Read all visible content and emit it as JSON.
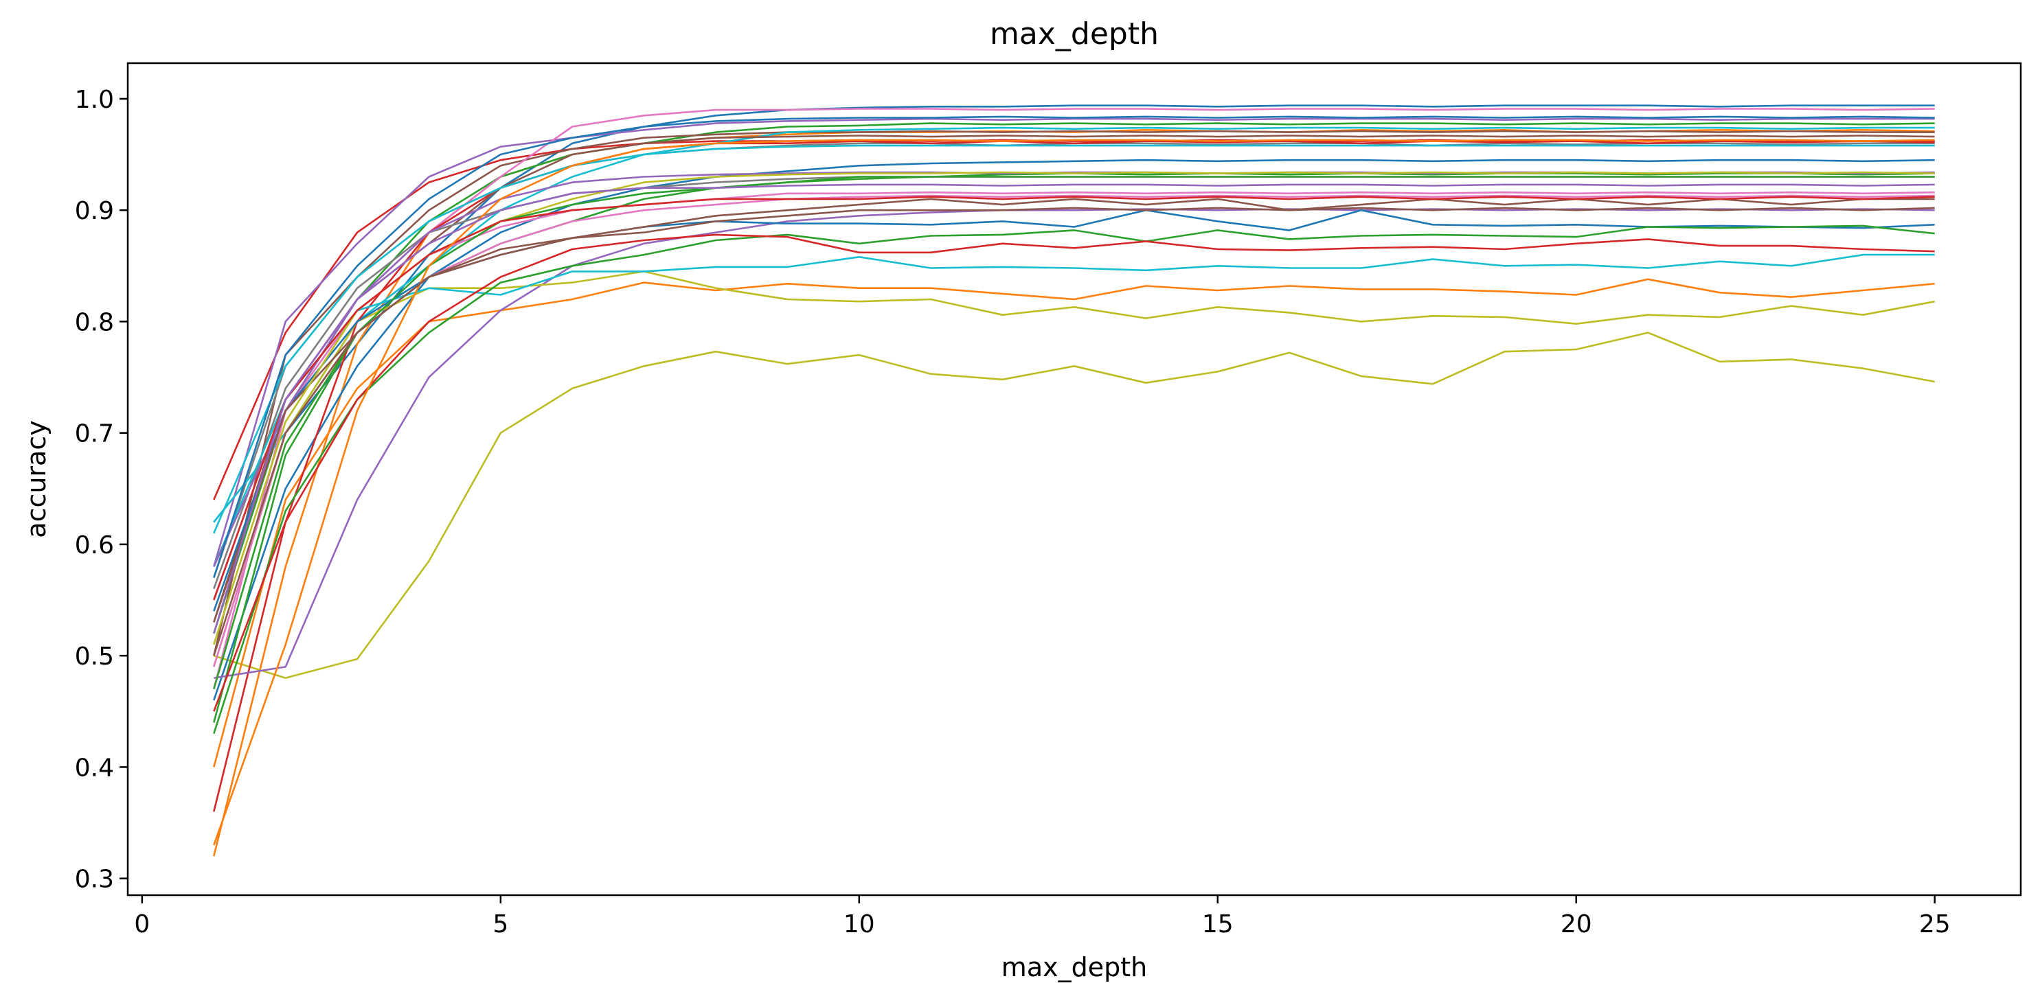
{
  "chart_data": {
    "type": "line",
    "title": "max_depth",
    "xlabel": "max_depth",
    "ylabel": "accuracy",
    "xlim": [
      -0.2,
      26.2
    ],
    "ylim": [
      0.285,
      1.032
    ],
    "xticks": [
      0,
      5,
      10,
      15,
      20,
      25
    ],
    "xtick_labels": [
      "0",
      "5",
      "10",
      "15",
      "20",
      "25"
    ],
    "yticks": [
      0.3,
      0.4,
      0.5,
      0.6,
      0.7,
      0.8,
      0.9,
      1.0
    ],
    "ytick_labels": [
      "0.3",
      "0.4",
      "0.5",
      "0.6",
      "0.7",
      "0.8",
      "0.9",
      "1.0"
    ],
    "grid": false,
    "legend": "none",
    "x": [
      1,
      2,
      3,
      4,
      5,
      6,
      7,
      8,
      9,
      10,
      11,
      12,
      13,
      14,
      15,
      16,
      17,
      18,
      19,
      20,
      21,
      22,
      23,
      24,
      25
    ],
    "series": [
      {
        "color": "#1f77b4",
        "values": [
          0.62,
          0.7,
          0.78,
          0.86,
          0.92,
          0.96,
          0.975,
          0.985,
          0.99,
          0.992,
          0.993,
          0.993,
          0.994,
          0.994,
          0.993,
          0.994,
          0.994,
          0.993,
          0.994,
          0.994,
          0.994,
          0.993,
          0.994,
          0.994,
          0.994
        ]
      },
      {
        "color": "#ff7f0e",
        "values": [
          0.32,
          0.58,
          0.78,
          0.88,
          0.93,
          0.95,
          0.96,
          0.965,
          0.968,
          0.97,
          0.97,
          0.971,
          0.97,
          0.972,
          0.971,
          0.97,
          0.972,
          0.971,
          0.972,
          0.97,
          0.971,
          0.972,
          0.971,
          0.972,
          0.971
        ]
      },
      {
        "color": "#2ca02c",
        "values": [
          0.52,
          0.72,
          0.82,
          0.89,
          0.93,
          0.95,
          0.96,
          0.97,
          0.975,
          0.976,
          0.978,
          0.977,
          0.978,
          0.977,
          0.978,
          0.977,
          0.978,
          0.978,
          0.977,
          0.978,
          0.977,
          0.978,
          0.978,
          0.977,
          0.978
        ]
      },
      {
        "color": "#d62728",
        "values": [
          0.64,
          0.79,
          0.88,
          0.925,
          0.945,
          0.955,
          0.96,
          0.962,
          0.962,
          0.963,
          0.962,
          0.963,
          0.962,
          0.962,
          0.963,
          0.962,
          0.962,
          0.963,
          0.962,
          0.962,
          0.963,
          0.962,
          0.962,
          0.962,
          0.962
        ]
      },
      {
        "color": "#9467bd",
        "values": [
          0.58,
          0.8,
          0.87,
          0.93,
          0.957,
          0.965,
          0.972,
          0.978,
          0.98,
          0.981,
          0.982,
          0.981,
          0.982,
          0.982,
          0.981,
          0.982,
          0.982,
          0.982,
          0.981,
          0.982,
          0.982,
          0.981,
          0.982,
          0.982,
          0.982
        ]
      },
      {
        "color": "#8c564b",
        "values": [
          0.5,
          0.77,
          0.84,
          0.9,
          0.94,
          0.955,
          0.965,
          0.968,
          0.97,
          0.97,
          0.971,
          0.97,
          0.971,
          0.97,
          0.971,
          0.97,
          0.971,
          0.97,
          0.971,
          0.97,
          0.971,
          0.97,
          0.971,
          0.97,
          0.97
        ]
      },
      {
        "color": "#e377c2",
        "values": [
          0.55,
          0.73,
          0.82,
          0.88,
          0.93,
          0.975,
          0.985,
          0.99,
          0.99,
          0.991,
          0.991,
          0.99,
          0.991,
          0.991,
          0.99,
          0.991,
          0.991,
          0.99,
          0.991,
          0.991,
          0.99,
          0.991,
          0.991,
          0.99,
          0.991
        ]
      },
      {
        "color": "#7f7f7f",
        "values": [
          0.57,
          0.76,
          0.84,
          0.89,
          0.92,
          0.94,
          0.95,
          0.955,
          0.958,
          0.96,
          0.96,
          0.958,
          0.96,
          0.96,
          0.959,
          0.96,
          0.96,
          0.958,
          0.96,
          0.959,
          0.96,
          0.96,
          0.959,
          0.96,
          0.96
        ]
      },
      {
        "color": "#bcbd22",
        "values": [
          0.5,
          0.48,
          0.497,
          0.585,
          0.7,
          0.74,
          0.76,
          0.773,
          0.762,
          0.77,
          0.753,
          0.748,
          0.76,
          0.745,
          0.755,
          0.772,
          0.751,
          0.744,
          0.773,
          0.775,
          0.79,
          0.764,
          0.766,
          0.758,
          0.746
        ]
      },
      {
        "color": "#17becf",
        "values": [
          0.62,
          0.7,
          0.8,
          0.85,
          0.9,
          0.93,
          0.95,
          0.96,
          0.97,
          0.972,
          0.973,
          0.974,
          0.973,
          0.974,
          0.973,
          0.974,
          0.974,
          0.973,
          0.974,
          0.973,
          0.974,
          0.974,
          0.973,
          0.974,
          0.974
        ]
      },
      {
        "color": "#1f77b4",
        "values": [
          0.46,
          0.65,
          0.76,
          0.84,
          0.88,
          0.905,
          0.92,
          0.93,
          0.935,
          0.94,
          0.942,
          0.943,
          0.944,
          0.945,
          0.944,
          0.945,
          0.945,
          0.944,
          0.945,
          0.945,
          0.944,
          0.945,
          0.945,
          0.944,
          0.945
        ]
      },
      {
        "color": "#ff7f0e",
        "values": [
          0.4,
          0.64,
          0.74,
          0.8,
          0.81,
          0.82,
          0.835,
          0.828,
          0.834,
          0.83,
          0.83,
          0.825,
          0.82,
          0.832,
          0.828,
          0.832,
          0.829,
          0.829,
          0.827,
          0.824,
          0.838,
          0.826,
          0.822,
          0.828,
          0.834
        ]
      },
      {
        "color": "#2ca02c",
        "values": [
          0.44,
          0.68,
          0.79,
          0.84,
          0.87,
          0.89,
          0.91,
          0.92,
          0.925,
          0.928,
          0.93,
          0.932,
          0.933,
          0.932,
          0.933,
          0.932,
          0.933,
          0.932,
          0.933,
          0.933,
          0.932,
          0.933,
          0.933,
          0.932,
          0.933
        ]
      },
      {
        "color": "#d62728",
        "values": [
          0.36,
          0.62,
          0.8,
          0.88,
          0.92,
          0.94,
          0.955,
          0.96,
          0.96,
          0.962,
          0.96,
          0.962,
          0.96,
          0.962,
          0.961,
          0.962,
          0.96,
          0.962,
          0.961,
          0.962,
          0.96,
          0.962,
          0.961,
          0.962,
          0.961
        ]
      },
      {
        "color": "#9467bd",
        "values": [
          0.48,
          0.49,
          0.64,
          0.75,
          0.81,
          0.85,
          0.87,
          0.88,
          0.89,
          0.895,
          0.898,
          0.9,
          0.9,
          0.901,
          0.9,
          0.901,
          0.9,
          0.901,
          0.9,
          0.901,
          0.9,
          0.901,
          0.9,
          0.901,
          0.9
        ]
      },
      {
        "color": "#8c564b",
        "values": [
          0.53,
          0.73,
          0.82,
          0.87,
          0.92,
          0.95,
          0.96,
          0.965,
          0.966,
          0.967,
          0.966,
          0.967,
          0.966,
          0.967,
          0.966,
          0.967,
          0.966,
          0.967,
          0.966,
          0.967,
          0.966,
          0.967,
          0.966,
          0.967,
          0.966
        ]
      },
      {
        "color": "#e377c2",
        "values": [
          0.47,
          0.72,
          0.81,
          0.86,
          0.885,
          0.9,
          0.905,
          0.91,
          0.915,
          0.915,
          0.916,
          0.915,
          0.916,
          0.915,
          0.916,
          0.915,
          0.916,
          0.915,
          0.916,
          0.915,
          0.916,
          0.915,
          0.916,
          0.915,
          0.916
        ]
      },
      {
        "color": "#7f7f7f",
        "values": [
          0.56,
          0.74,
          0.83,
          0.88,
          0.9,
          0.915,
          0.92,
          0.925,
          0.928,
          0.93,
          0.93,
          0.93,
          0.93,
          0.93,
          0.93,
          0.93,
          0.93,
          0.93,
          0.93,
          0.93,
          0.93,
          0.93,
          0.93,
          0.93,
          0.93
        ]
      },
      {
        "color": "#bcbd22",
        "values": [
          0.49,
          0.7,
          0.8,
          0.83,
          0.83,
          0.835,
          0.845,
          0.83,
          0.82,
          0.818,
          0.82,
          0.806,
          0.813,
          0.803,
          0.813,
          0.808,
          0.8,
          0.805,
          0.804,
          0.798,
          0.806,
          0.804,
          0.814,
          0.806,
          0.818
        ]
      },
      {
        "color": "#17becf",
        "values": [
          0.58,
          0.73,
          0.81,
          0.83,
          0.824,
          0.845,
          0.845,
          0.849,
          0.849,
          0.858,
          0.848,
          0.849,
          0.848,
          0.846,
          0.85,
          0.848,
          0.848,
          0.856,
          0.85,
          0.851,
          0.848,
          0.854,
          0.85,
          0.86,
          0.86
        ]
      },
      {
        "color": "#1f77b4",
        "values": [
          0.54,
          0.72,
          0.8,
          0.84,
          0.86,
          0.875,
          0.885,
          0.89,
          0.888,
          0.888,
          0.887,
          0.89,
          0.885,
          0.9,
          0.89,
          0.882,
          0.9,
          0.887,
          0.886,
          0.887,
          0.885,
          0.886,
          0.885,
          0.884,
          0.887
        ]
      },
      {
        "color": "#2ca02c",
        "values": [
          0.43,
          0.63,
          0.73,
          0.79,
          0.835,
          0.85,
          0.86,
          0.873,
          0.878,
          0.87,
          0.877,
          0.878,
          0.882,
          0.872,
          0.882,
          0.874,
          0.877,
          0.878,
          0.877,
          0.876,
          0.885,
          0.884,
          0.885,
          0.886,
          0.879
        ]
      },
      {
        "color": "#d62728",
        "values": [
          0.45,
          0.62,
          0.73,
          0.8,
          0.84,
          0.865,
          0.873,
          0.878,
          0.876,
          0.862,
          0.862,
          0.87,
          0.866,
          0.872,
          0.865,
          0.864,
          0.866,
          0.867,
          0.865,
          0.87,
          0.874,
          0.868,
          0.868,
          0.865,
          0.863
        ]
      },
      {
        "color": "#9467bd",
        "values": [
          0.58,
          0.72,
          0.82,
          0.88,
          0.91,
          0.925,
          0.93,
          0.932,
          0.933,
          0.934,
          0.934,
          0.933,
          0.934,
          0.934,
          0.933,
          0.934,
          0.934,
          0.933,
          0.934,
          0.934,
          0.933,
          0.934,
          0.934,
          0.933,
          0.934
        ]
      },
      {
        "color": "#8c564b",
        "values": [
          0.53,
          0.72,
          0.79,
          0.84,
          0.86,
          0.875,
          0.885,
          0.895,
          0.9,
          0.905,
          0.91,
          0.905,
          0.91,
          0.905,
          0.91,
          0.9,
          0.905,
          0.91,
          0.905,
          0.91,
          0.905,
          0.91,
          0.905,
          0.91,
          0.91
        ]
      },
      {
        "color": "#e377c2",
        "values": [
          0.49,
          0.7,
          0.79,
          0.84,
          0.87,
          0.89,
          0.9,
          0.905,
          0.91,
          0.912,
          0.913,
          0.912,
          0.913,
          0.912,
          0.913,
          0.912,
          0.913,
          0.912,
          0.913,
          0.912,
          0.913,
          0.912,
          0.913,
          0.912,
          0.913
        ]
      },
      {
        "color": "#bcbd22",
        "values": [
          0.51,
          0.71,
          0.81,
          0.86,
          0.89,
          0.91,
          0.925,
          0.93,
          0.932,
          0.933,
          0.933,
          0.934,
          0.933,
          0.934,
          0.933,
          0.934,
          0.933,
          0.934,
          0.933,
          0.934,
          0.933,
          0.934,
          0.933,
          0.934,
          0.933
        ]
      },
      {
        "color": "#17becf",
        "values": [
          0.61,
          0.76,
          0.84,
          0.89,
          0.92,
          0.94,
          0.95,
          0.955,
          0.957,
          0.958,
          0.958,
          0.958,
          0.958,
          0.958,
          0.958,
          0.958,
          0.958,
          0.958,
          0.958,
          0.958,
          0.958,
          0.958,
          0.958,
          0.958,
          0.958
        ]
      },
      {
        "color": "#2ca02c",
        "values": [
          0.47,
          0.69,
          0.79,
          0.85,
          0.89,
          0.905,
          0.915,
          0.92,
          0.925,
          0.93,
          0.93,
          0.93,
          0.93,
          0.93,
          0.93,
          0.93,
          0.93,
          0.93,
          0.93,
          0.93,
          0.93,
          0.93,
          0.93,
          0.93,
          0.93
        ]
      },
      {
        "color": "#d62728",
        "values": [
          0.55,
          0.73,
          0.81,
          0.86,
          0.89,
          0.9,
          0.905,
          0.91,
          0.91,
          0.91,
          0.912,
          0.91,
          0.912,
          0.91,
          0.912,
          0.91,
          0.912,
          0.91,
          0.912,
          0.91,
          0.912,
          0.91,
          0.912,
          0.91,
          0.912
        ]
      },
      {
        "color": "#ff7f0e",
        "values": [
          0.33,
          0.51,
          0.72,
          0.85,
          0.91,
          0.94,
          0.955,
          0.96,
          0.962,
          0.963,
          0.963,
          0.962,
          0.963,
          0.963,
          0.962,
          0.963,
          0.963,
          0.962,
          0.963,
          0.963,
          0.962,
          0.963,
          0.963,
          0.962,
          0.963
        ]
      },
      {
        "color": "#1f77b4",
        "values": [
          0.57,
          0.77,
          0.85,
          0.91,
          0.95,
          0.965,
          0.975,
          0.98,
          0.982,
          0.983,
          0.983,
          0.984,
          0.983,
          0.984,
          0.983,
          0.984,
          0.983,
          0.984,
          0.983,
          0.984,
          0.983,
          0.984,
          0.983,
          0.984,
          0.983
        ]
      },
      {
        "color": "#8c564b",
        "values": [
          0.5,
          0.7,
          0.79,
          0.84,
          0.865,
          0.875,
          0.88,
          0.89,
          0.895,
          0.9,
          0.9,
          0.9,
          0.902,
          0.9,
          0.902,
          0.9,
          0.902,
          0.9,
          0.902,
          0.9,
          0.902,
          0.9,
          0.902,
          0.9,
          0.902
        ]
      },
      {
        "color": "#9467bd",
        "values": [
          0.52,
          0.73,
          0.82,
          0.87,
          0.9,
          0.915,
          0.92,
          0.92,
          0.922,
          0.923,
          0.923,
          0.922,
          0.923,
          0.923,
          0.922,
          0.923,
          0.923,
          0.922,
          0.923,
          0.923,
          0.922,
          0.923,
          0.923,
          0.922,
          0.923
        ]
      }
    ]
  }
}
